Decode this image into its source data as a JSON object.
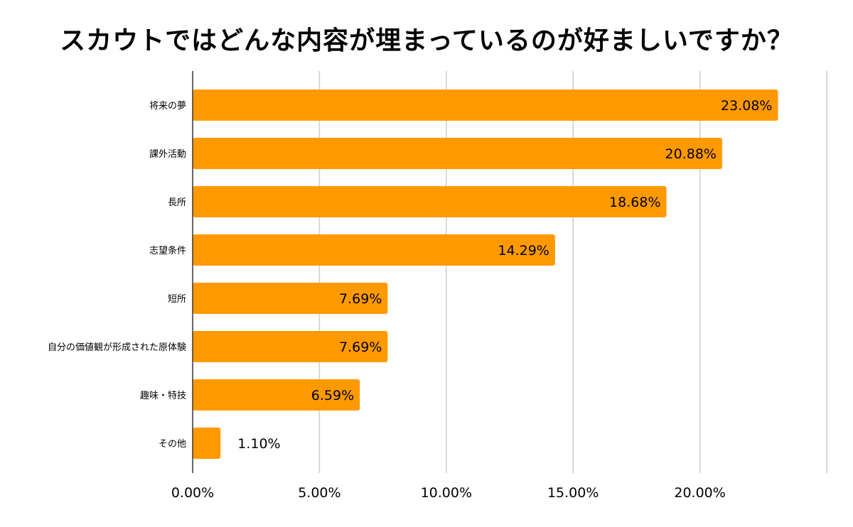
{
  "chart_data": {
    "type": "bar",
    "orientation": "horizontal",
    "title": "スカウトではどんな内容が埋まっているのが好ましいですか？",
    "categories": [
      "将来の夢",
      "課外活動",
      "長所",
      "志望条件",
      "短所",
      "自分の価値観が形成された原体験",
      "趣味・特技",
      "その他"
    ],
    "values": [
      23.08,
      20.88,
      18.68,
      14.29,
      7.69,
      7.69,
      6.59,
      1.1
    ],
    "value_labels": [
      "23.08%",
      "20.88%",
      "18.68%",
      "14.29%",
      "7.69%",
      "7.69%",
      "6.59%",
      "1.10%"
    ],
    "xlim": [
      0,
      25
    ],
    "x_ticks": [
      0,
      5,
      10,
      15,
      20
    ],
    "x_tick_labels": [
      "0.00%",
      "5.00%",
      "10.00%",
      "15.00%",
      "20.00%"
    ],
    "grid": true,
    "legend": "none",
    "bar_color": "#FF9900"
  }
}
